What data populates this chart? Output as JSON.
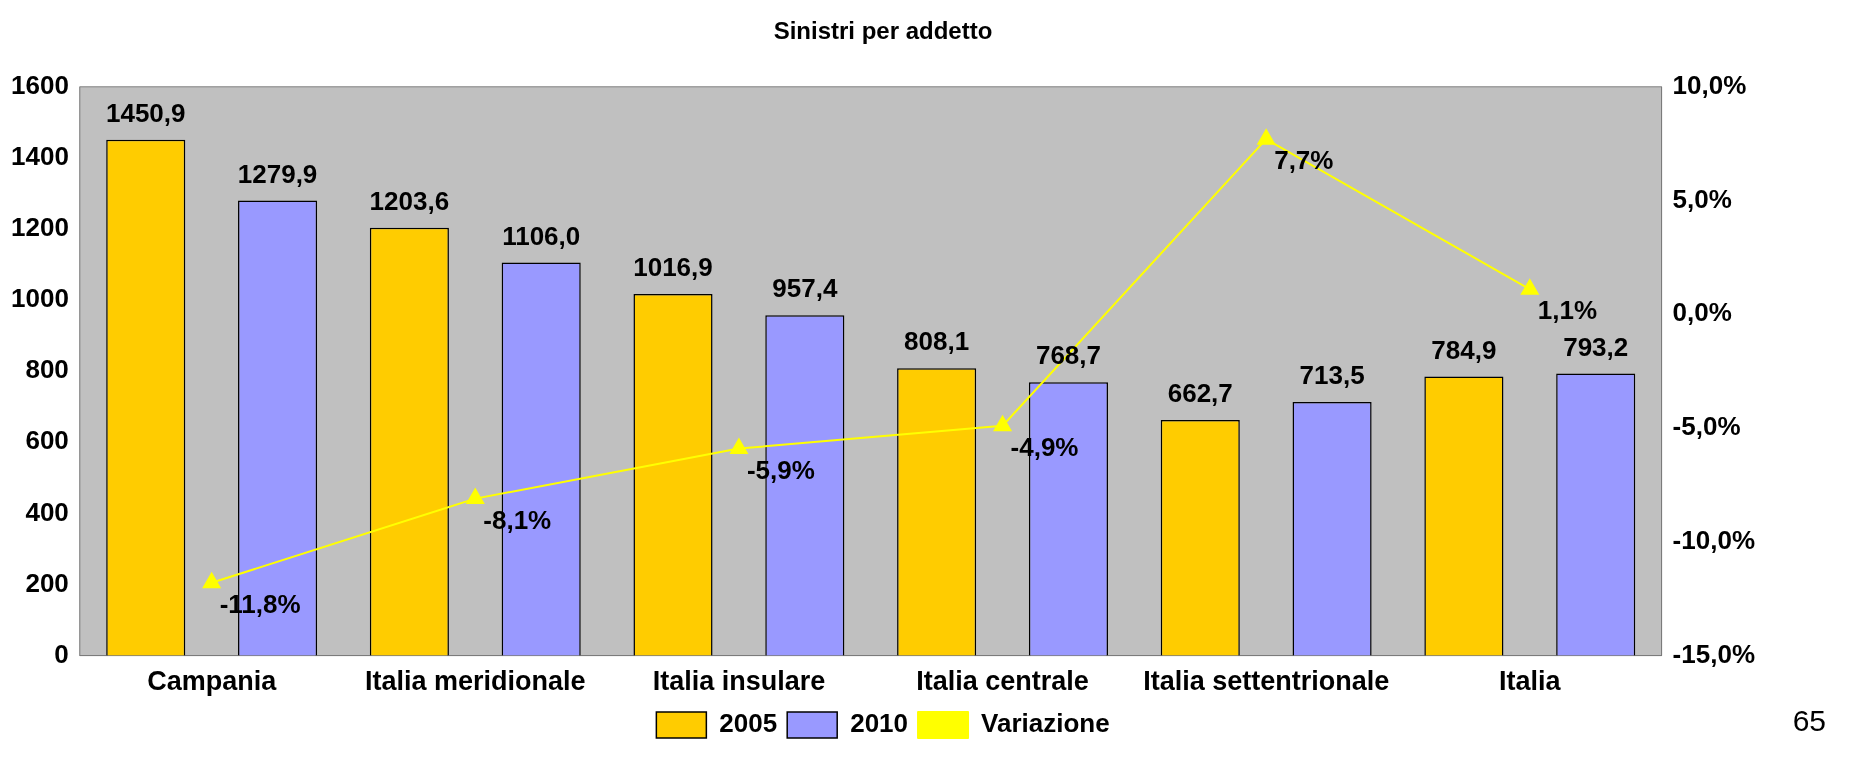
{
  "chart_data": {
    "type": "bar",
    "title": "Sinistri per addetto",
    "categories": [
      "Campania",
      "Italia meridionale",
      "Italia insulare",
      "Italia centrale",
      "Italia settentrionale",
      "Italia"
    ],
    "series": [
      {
        "name": "2005",
        "color": "#ffcc00",
        "values": [
          1450.9,
          1203.6,
          1016.9,
          808.1,
          662.7,
          784.9
        ],
        "value_labels": [
          "1450,9",
          "1203,6",
          "1016,9",
          "808,1",
          "662,7",
          "784,9"
        ]
      },
      {
        "name": "2010",
        "color": "#9999ff",
        "values": [
          1279.9,
          1106.0,
          957.4,
          768.7,
          713.5,
          793.2
        ],
        "value_labels": [
          "1279,9",
          "1106,0",
          "957,4",
          "768,7",
          "713,5",
          "793,2"
        ]
      },
      {
        "name": "Variazione",
        "type": "line",
        "axis": "y2",
        "color": "#ffff00",
        "marker": "triangle",
        "values": [
          -11.8,
          -8.1,
          -5.9,
          -4.9,
          7.7,
          1.1
        ],
        "value_labels": [
          "-11,8%",
          "-8,1%",
          "-5,9%",
          "-4,9%",
          "7,7%",
          "1,1%"
        ]
      }
    ],
    "ylim": [
      0,
      1600
    ],
    "yticks": [
      0,
      200,
      400,
      600,
      800,
      1000,
      1200,
      1400,
      1600
    ],
    "y2lim": [
      -15,
      10
    ],
    "y2ticks": [
      {
        "value": -15,
        "label": "-15,0%"
      },
      {
        "value": -10,
        "label": "-10,0%"
      },
      {
        "value": -5,
        "label": "-5,0%"
      },
      {
        "value": 0,
        "label": "0,0%"
      },
      {
        "value": 5,
        "label": "5,0%"
      },
      {
        "value": 10,
        "label": "10,0%"
      }
    ],
    "grid": false,
    "legend": "bottom",
    "annotations": [
      "65"
    ]
  }
}
